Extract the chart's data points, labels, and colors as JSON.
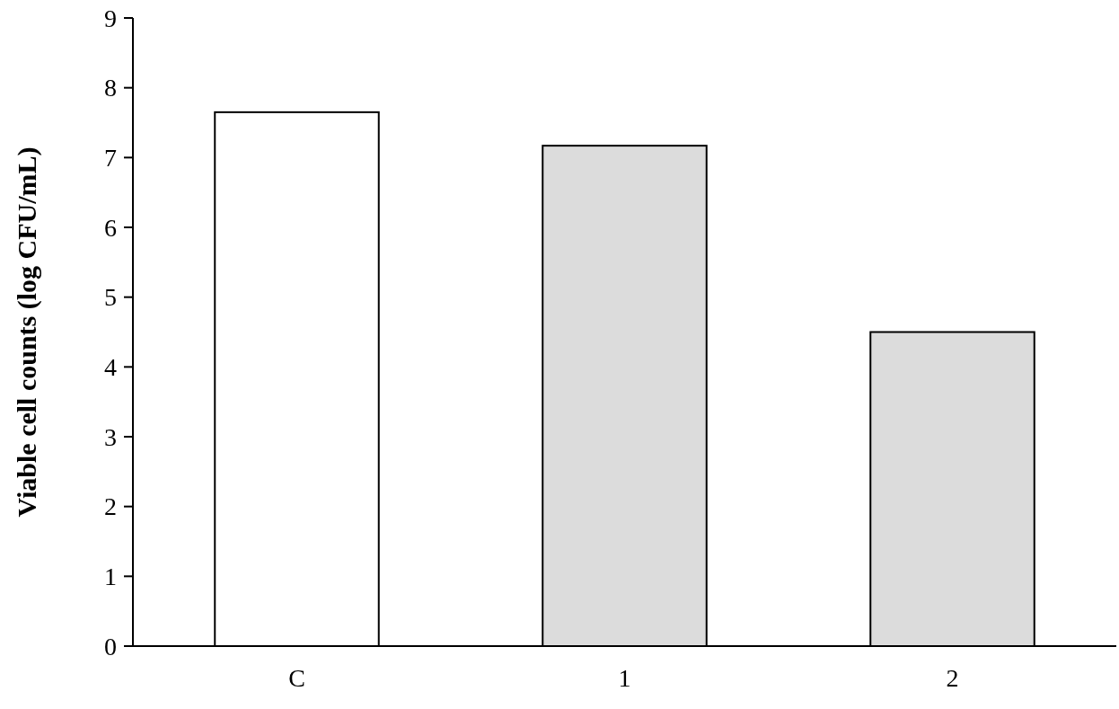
{
  "chart_data": {
    "type": "bar",
    "ylabel": "Viable cell counts (log CFU/mL)",
    "categories": [
      "C",
      "1",
      "2"
    ],
    "values": [
      7.65,
      7.17,
      4.5
    ],
    "colors": [
      "#ffffff",
      "#dcdcdc",
      "#dcdcdc"
    ],
    "ylim": [
      0,
      9
    ],
    "yticks": [
      0,
      1,
      2,
      3,
      4,
      5,
      6,
      7,
      8,
      9
    ],
    "grid": false
  }
}
